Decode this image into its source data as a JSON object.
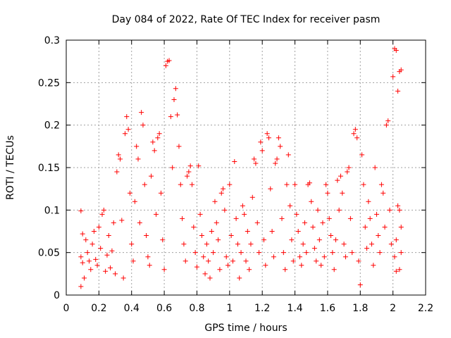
{
  "chart_data": {
    "type": "scatter",
    "title": "Day 084 of 2022, Rate Of TEC Index for receiver pasm",
    "xlabel": "GPS time / hours",
    "ylabel": "ROTI / TECUs",
    "xlim": [
      0,
      2.2
    ],
    "ylim": [
      0,
      0.3
    ],
    "xticks": [
      0,
      0.2,
      0.4,
      0.6,
      0.8,
      1,
      1.2,
      1.4,
      1.6,
      1.8,
      2,
      2.2
    ],
    "xtick_labels": [
      "0",
      "0.2",
      "0.4",
      "0.6",
      "0.8",
      "1",
      "1.2",
      "1.4",
      "1.6",
      "1.8",
      "2",
      "2.2"
    ],
    "yticks": [
      0,
      0.05,
      0.1,
      0.15,
      0.2,
      0.25,
      0.3
    ],
    "ytick_labels": [
      "0",
      "0.05",
      "0.1",
      "0.15",
      "0.2",
      "0.25",
      "0.3"
    ],
    "grid": true,
    "marker": "+",
    "color": "#ff0000",
    "series": [
      {
        "name": "ROTI",
        "points": [
          [
            0.09,
            0.099
          ],
          [
            0.1,
            0.072
          ],
          [
            0.09,
            0.045
          ],
          [
            0.1,
            0.038
          ],
          [
            0.11,
            0.02
          ],
          [
            0.09,
            0.01
          ],
          [
            0.12,
            0.065
          ],
          [
            0.13,
            0.05
          ],
          [
            0.14,
            0.04
          ],
          [
            0.15,
            0.03
          ],
          [
            0.16,
            0.06
          ],
          [
            0.17,
            0.075
          ],
          [
            0.18,
            0.042
          ],
          [
            0.19,
            0.035
          ],
          [
            0.2,
            0.08
          ],
          [
            0.21,
            0.055
          ],
          [
            0.22,
            0.095
          ],
          [
            0.23,
            0.1
          ],
          [
            0.24,
            0.028
          ],
          [
            0.25,
            0.047
          ],
          [
            0.26,
            0.07
          ],
          [
            0.27,
            0.032
          ],
          [
            0.28,
            0.052
          ],
          [
            0.29,
            0.085
          ],
          [
            0.3,
            0.025
          ],
          [
            0.31,
            0.145
          ],
          [
            0.32,
            0.165
          ],
          [
            0.33,
            0.16
          ],
          [
            0.34,
            0.088
          ],
          [
            0.35,
            0.02
          ],
          [
            0.36,
            0.19
          ],
          [
            0.37,
            0.21
          ],
          [
            0.38,
            0.195
          ],
          [
            0.39,
            0.12
          ],
          [
            0.4,
            0.06
          ],
          [
            0.41,
            0.04
          ],
          [
            0.42,
            0.11
          ],
          [
            0.43,
            0.175
          ],
          [
            0.44,
            0.16
          ],
          [
            0.45,
            0.085
          ],
          [
            0.46,
            0.215
          ],
          [
            0.47,
            0.2
          ],
          [
            0.48,
            0.13
          ],
          [
            0.49,
            0.07
          ],
          [
            0.5,
            0.045
          ],
          [
            0.51,
            0.035
          ],
          [
            0.52,
            0.14
          ],
          [
            0.53,
            0.18
          ],
          [
            0.54,
            0.17
          ],
          [
            0.55,
            0.095
          ],
          [
            0.56,
            0.185
          ],
          [
            0.57,
            0.19
          ],
          [
            0.58,
            0.12
          ],
          [
            0.59,
            0.065
          ],
          [
            0.6,
            0.03
          ],
          [
            0.61,
            0.27
          ],
          [
            0.62,
            0.275
          ],
          [
            0.63,
            0.276
          ],
          [
            0.64,
            0.21
          ],
          [
            0.65,
            0.15
          ],
          [
            0.66,
            0.23
          ],
          [
            0.67,
            0.243
          ],
          [
            0.68,
            0.212
          ],
          [
            0.69,
            0.175
          ],
          [
            0.7,
            0.13
          ],
          [
            0.71,
            0.09
          ],
          [
            0.72,
            0.06
          ],
          [
            0.73,
            0.04
          ],
          [
            0.74,
            0.14
          ],
          [
            0.75,
            0.145
          ],
          [
            0.76,
            0.152
          ],
          [
            0.77,
            0.13
          ],
          [
            0.78,
            0.08
          ],
          [
            0.79,
            0.05
          ],
          [
            0.8,
            0.033
          ],
          [
            0.81,
            0.152
          ],
          [
            0.82,
            0.095
          ],
          [
            0.83,
            0.07
          ],
          [
            0.84,
            0.045
          ],
          [
            0.85,
            0.025
          ],
          [
            0.86,
            0.06
          ],
          [
            0.87,
            0.04
          ],
          [
            0.88,
            0.02
          ],
          [
            0.89,
            0.075
          ],
          [
            0.9,
            0.05
          ],
          [
            0.91,
            0.11
          ],
          [
            0.92,
            0.085
          ],
          [
            0.93,
            0.065
          ],
          [
            0.94,
            0.03
          ],
          [
            0.95,
            0.12
          ],
          [
            0.96,
            0.125
          ],
          [
            0.97,
            0.1
          ],
          [
            0.98,
            0.045
          ],
          [
            0.99,
            0.035
          ],
          [
            1.0,
            0.13
          ],
          [
            1.01,
            0.07
          ],
          [
            1.02,
            0.04
          ],
          [
            1.03,
            0.157
          ],
          [
            1.04,
            0.09
          ],
          [
            1.05,
            0.06
          ],
          [
            1.06,
            0.02
          ],
          [
            1.07,
            0.05
          ],
          [
            1.08,
            0.105
          ],
          [
            1.09,
            0.095
          ],
          [
            1.1,
            0.04
          ],
          [
            1.11,
            0.075
          ],
          [
            1.12,
            0.03
          ],
          [
            1.13,
            0.06
          ],
          [
            1.14,
            0.115
          ],
          [
            1.15,
            0.16
          ],
          [
            1.16,
            0.155
          ],
          [
            1.17,
            0.085
          ],
          [
            1.18,
            0.05
          ],
          [
            1.19,
            0.18
          ],
          [
            1.2,
            0.17
          ],
          [
            1.21,
            0.065
          ],
          [
            1.22,
            0.035
          ],
          [
            1.23,
            0.19
          ],
          [
            1.24,
            0.185
          ],
          [
            1.25,
            0.125
          ],
          [
            1.26,
            0.075
          ],
          [
            1.27,
            0.045
          ],
          [
            1.28,
            0.155
          ],
          [
            1.29,
            0.16
          ],
          [
            1.3,
            0.185
          ],
          [
            1.31,
            0.175
          ],
          [
            1.32,
            0.09
          ],
          [
            1.33,
            0.05
          ],
          [
            1.34,
            0.03
          ],
          [
            1.35,
            0.13
          ],
          [
            1.36,
            0.165
          ],
          [
            1.37,
            0.105
          ],
          [
            1.38,
            0.065
          ],
          [
            1.39,
            0.04
          ],
          [
            1.4,
            0.13
          ],
          [
            1.41,
            0.095
          ],
          [
            1.42,
            0.075
          ],
          [
            1.43,
            0.045
          ],
          [
            1.44,
            0.035
          ],
          [
            1.45,
            0.06
          ],
          [
            1.46,
            0.085
          ],
          [
            1.47,
            0.05
          ],
          [
            1.48,
            0.13
          ],
          [
            1.49,
            0.132
          ],
          [
            1.5,
            0.11
          ],
          [
            1.51,
            0.08
          ],
          [
            1.52,
            0.055
          ],
          [
            1.53,
            0.04
          ],
          [
            1.54,
            0.1
          ],
          [
            1.55,
            0.065
          ],
          [
            1.56,
            0.035
          ],
          [
            1.57,
            0.085
          ],
          [
            1.58,
            0.045
          ],
          [
            1.59,
            0.13
          ],
          [
            1.6,
            0.12
          ],
          [
            1.61,
            0.09
          ],
          [
            1.62,
            0.07
          ],
          [
            1.63,
            0.05
          ],
          [
            1.64,
            0.03
          ],
          [
            1.65,
            0.065
          ],
          [
            1.66,
            0.135
          ],
          [
            1.67,
            0.1
          ],
          [
            1.68,
            0.14
          ],
          [
            1.69,
            0.12
          ],
          [
            1.7,
            0.06
          ],
          [
            1.71,
            0.045
          ],
          [
            1.72,
            0.145
          ],
          [
            1.73,
            0.15
          ],
          [
            1.74,
            0.09
          ],
          [
            1.75,
            0.05
          ],
          [
            1.76,
            0.19
          ],
          [
            1.77,
            0.195
          ],
          [
            1.78,
            0.185
          ],
          [
            1.79,
            0.04
          ],
          [
            1.8,
            0.012
          ],
          [
            1.81,
            0.165
          ],
          [
            1.82,
            0.13
          ],
          [
            1.83,
            0.08
          ],
          [
            1.84,
            0.055
          ],
          [
            1.85,
            0.11
          ],
          [
            1.86,
            0.09
          ],
          [
            1.87,
            0.06
          ],
          [
            1.88,
            0.035
          ],
          [
            1.89,
            0.15
          ],
          [
            1.9,
            0.095
          ],
          [
            1.91,
            0.07
          ],
          [
            1.92,
            0.05
          ],
          [
            1.93,
            0.13
          ],
          [
            1.94,
            0.12
          ],
          [
            1.95,
            0.08
          ],
          [
            1.96,
            0.2
          ],
          [
            1.97,
            0.205
          ],
          [
            1.98,
            0.1
          ],
          [
            1.99,
            0.06
          ],
          [
            2.0,
            0.257
          ],
          [
            2.01,
            0.29
          ],
          [
            2.02,
            0.288
          ],
          [
            2.03,
            0.24
          ],
          [
            2.04,
            0.263
          ],
          [
            2.05,
            0.265
          ],
          [
            2.03,
            0.105
          ],
          [
            2.04,
            0.1
          ],
          [
            2.05,
            0.08
          ],
          [
            2.02,
            0.065
          ],
          [
            2.01,
            0.045
          ],
          [
            2.04,
            0.03
          ],
          [
            2.05,
            0.05
          ],
          [
            2.02,
            0.028
          ]
        ]
      }
    ]
  }
}
